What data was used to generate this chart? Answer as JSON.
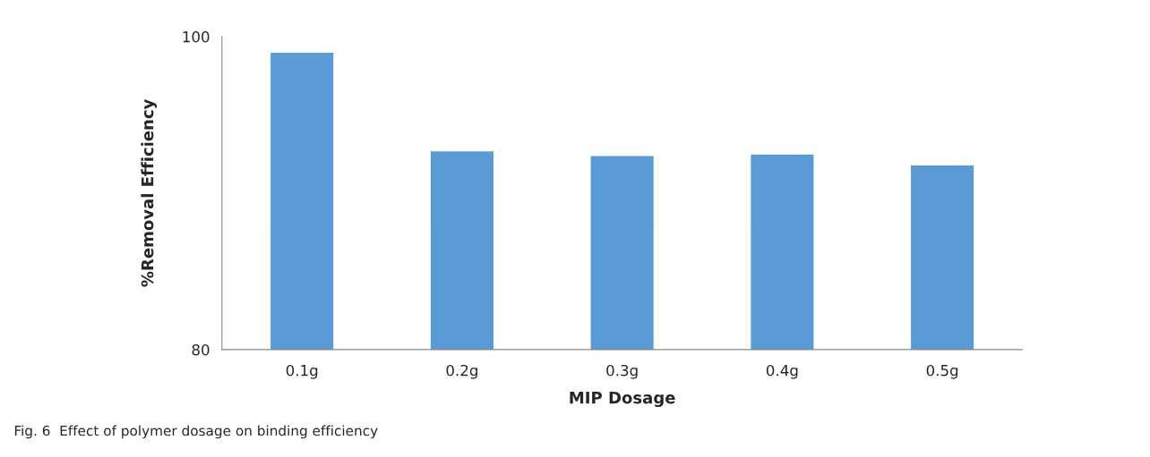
{
  "chart_data": {
    "type": "bar",
    "xlabel": "MIP Dosage",
    "ylabel": "%Removal Efficiency",
    "categories": [
      "0.1g",
      "0.2g",
      "0.3g",
      "0.4g",
      "0.5g"
    ],
    "values": [
      99.0,
      92.7,
      92.4,
      92.5,
      91.8
    ],
    "color": "#5b9bd5",
    "ylim": [
      80,
      100
    ],
    "yticks": [
      80,
      100
    ],
    "grid": false,
    "legend": false,
    "annotations": [
      "Fig. 6  Effect of polymer dosage on binding efficiency"
    ]
  }
}
